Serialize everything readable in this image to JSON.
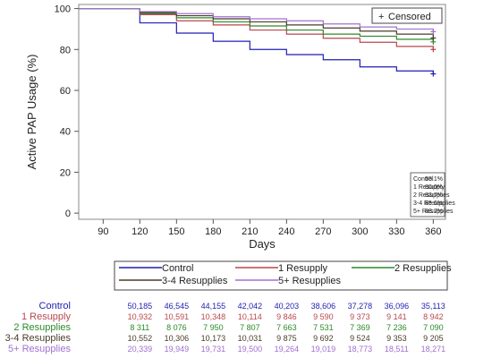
{
  "chart_data": {
    "type": "line",
    "xlabel": "Days",
    "ylabel": "Active PAP Usage (%)",
    "x_ticks": [
      90,
      120,
      150,
      180,
      210,
      240,
      270,
      300,
      330,
      360
    ],
    "y_ticks": [
      0,
      20,
      40,
      60,
      80,
      100
    ],
    "xlim": [
      70,
      370
    ],
    "ylim": [
      -3,
      102
    ],
    "censor_legend": "Censored",
    "censor_symbol": "+",
    "series": [
      {
        "name": "Control",
        "color": "#1f1fb4",
        "x": [
          120,
          150,
          180,
          210,
          240,
          270,
          300,
          330,
          360
        ],
        "y": [
          93,
          88,
          84,
          80,
          77.5,
          75,
          71.5,
          69.5,
          68.1
        ]
      },
      {
        "name": "1 Resupply",
        "color": "#b8474f",
        "x": [
          120,
          150,
          180,
          210,
          240,
          270,
          300,
          330,
          360
        ],
        "y": [
          97,
          94,
          92,
          89.5,
          87.5,
          85.5,
          83.5,
          81.5,
          80.0
        ]
      },
      {
        "name": "2 Resupplies",
        "color": "#2a8a2a",
        "x": [
          120,
          150,
          180,
          210,
          240,
          270,
          300,
          330,
          360
        ],
        "y": [
          97.5,
          95.5,
          93.5,
          91.5,
          89.5,
          87.5,
          86.5,
          85,
          83.7
        ]
      },
      {
        "name": "3-4 Resupplies",
        "color": "#4a3c2a",
        "x": [
          120,
          150,
          180,
          210,
          240,
          270,
          300,
          330,
          360
        ],
        "y": [
          98,
          96.5,
          95,
          93.5,
          92,
          90.5,
          89,
          87.5,
          85.6
        ]
      },
      {
        "name": "5+ Resupplies",
        "color": "#a070d0",
        "x": [
          120,
          150,
          180,
          210,
          240,
          270,
          300,
          330,
          360
        ],
        "y": [
          98.5,
          97.5,
          96,
          95,
          94,
          92.5,
          91,
          90,
          88.7
        ]
      }
    ],
    "inset_table": [
      {
        "label": "Control",
        "value": "68.1%"
      },
      {
        "label": "1 Resupply",
        "value": "80.0%"
      },
      {
        "label": "2 Resupplies",
        "value": "83.7%"
      },
      {
        "label": "3-4 Resupplies",
        "value": "85.6%"
      },
      {
        "label": "5+ Resupplies",
        "value": "88.7%"
      }
    ],
    "risk_table": [
      {
        "label": "Control",
        "values": [
          "50,185",
          "46,545",
          "44,155",
          "42,042",
          "40,203",
          "38,606",
          "37,278",
          "36,096",
          "35,113"
        ]
      },
      {
        "label": "1 Resupply",
        "values": [
          "10,932",
          "10,591",
          "10,348",
          "10,114",
          "9 846",
          "9 590",
          "9 373",
          "9 141",
          "8 942"
        ]
      },
      {
        "label": "2 Resupplies",
        "values": [
          "8 311",
          "8 076",
          "7 950",
          "7 807",
          "7 663",
          "7 531",
          "7 369",
          "7 236",
          "7 090"
        ]
      },
      {
        "label": "3-4 Resupplies",
        "values": [
          "10,552",
          "10,306",
          "10,173",
          "10,031",
          "9 875",
          "9 692",
          "9 524",
          "9 353",
          "9 205"
        ]
      },
      {
        "label": "5+ Resupplies",
        "values": [
          "20,339",
          "19,949",
          "19,731",
          "19,500",
          "19,264",
          "19,019",
          "18,773",
          "18,511",
          "18,271"
        ]
      }
    ]
  }
}
